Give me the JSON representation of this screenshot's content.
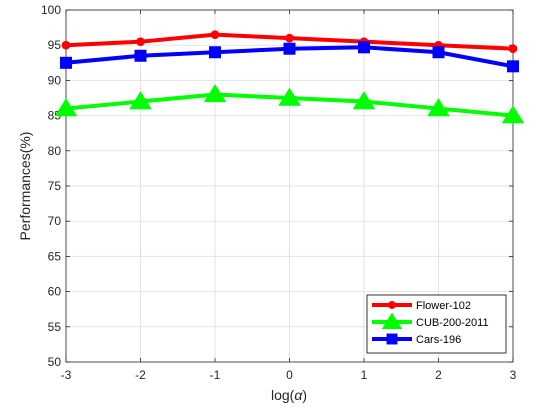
{
  "chart_data": {
    "type": "line",
    "title": "",
    "xlabel_prefix": "log(",
    "xlabel_symbol": "α",
    "xlabel_suffix": ")",
    "ylabel": "Performances(%)",
    "x": [
      -3,
      -2,
      -1,
      0,
      1,
      2,
      3
    ],
    "x_tick_labels": [
      "-3",
      "-2",
      "-1",
      "0",
      "1",
      "2",
      "3"
    ],
    "xlim": [
      -3,
      3
    ],
    "ylim": [
      50,
      100
    ],
    "y_ticks": [
      50,
      55,
      60,
      65,
      70,
      75,
      80,
      85,
      90,
      95,
      100
    ],
    "y_tick_labels": [
      "50",
      "55",
      "60",
      "65",
      "70",
      "75",
      "80",
      "85",
      "90",
      "95",
      "100"
    ],
    "grid": true,
    "legend_position": "bottom-right",
    "series": [
      {
        "name": "Flower-102",
        "color": "#ff0000",
        "marker": "circle",
        "values": [
          95.0,
          95.5,
          96.5,
          96.0,
          95.5,
          95.0,
          94.5
        ]
      },
      {
        "name": "CUB-200-2011",
        "color": "#00ff00",
        "marker": "triangle",
        "values": [
          86.0,
          87.0,
          88.0,
          87.5,
          87.0,
          86.0,
          85.0
        ]
      },
      {
        "name": "Cars-196",
        "color": "#0000ff",
        "marker": "square",
        "values": [
          92.5,
          93.5,
          94.0,
          94.5,
          94.7,
          94.0,
          92.0
        ]
      }
    ]
  }
}
